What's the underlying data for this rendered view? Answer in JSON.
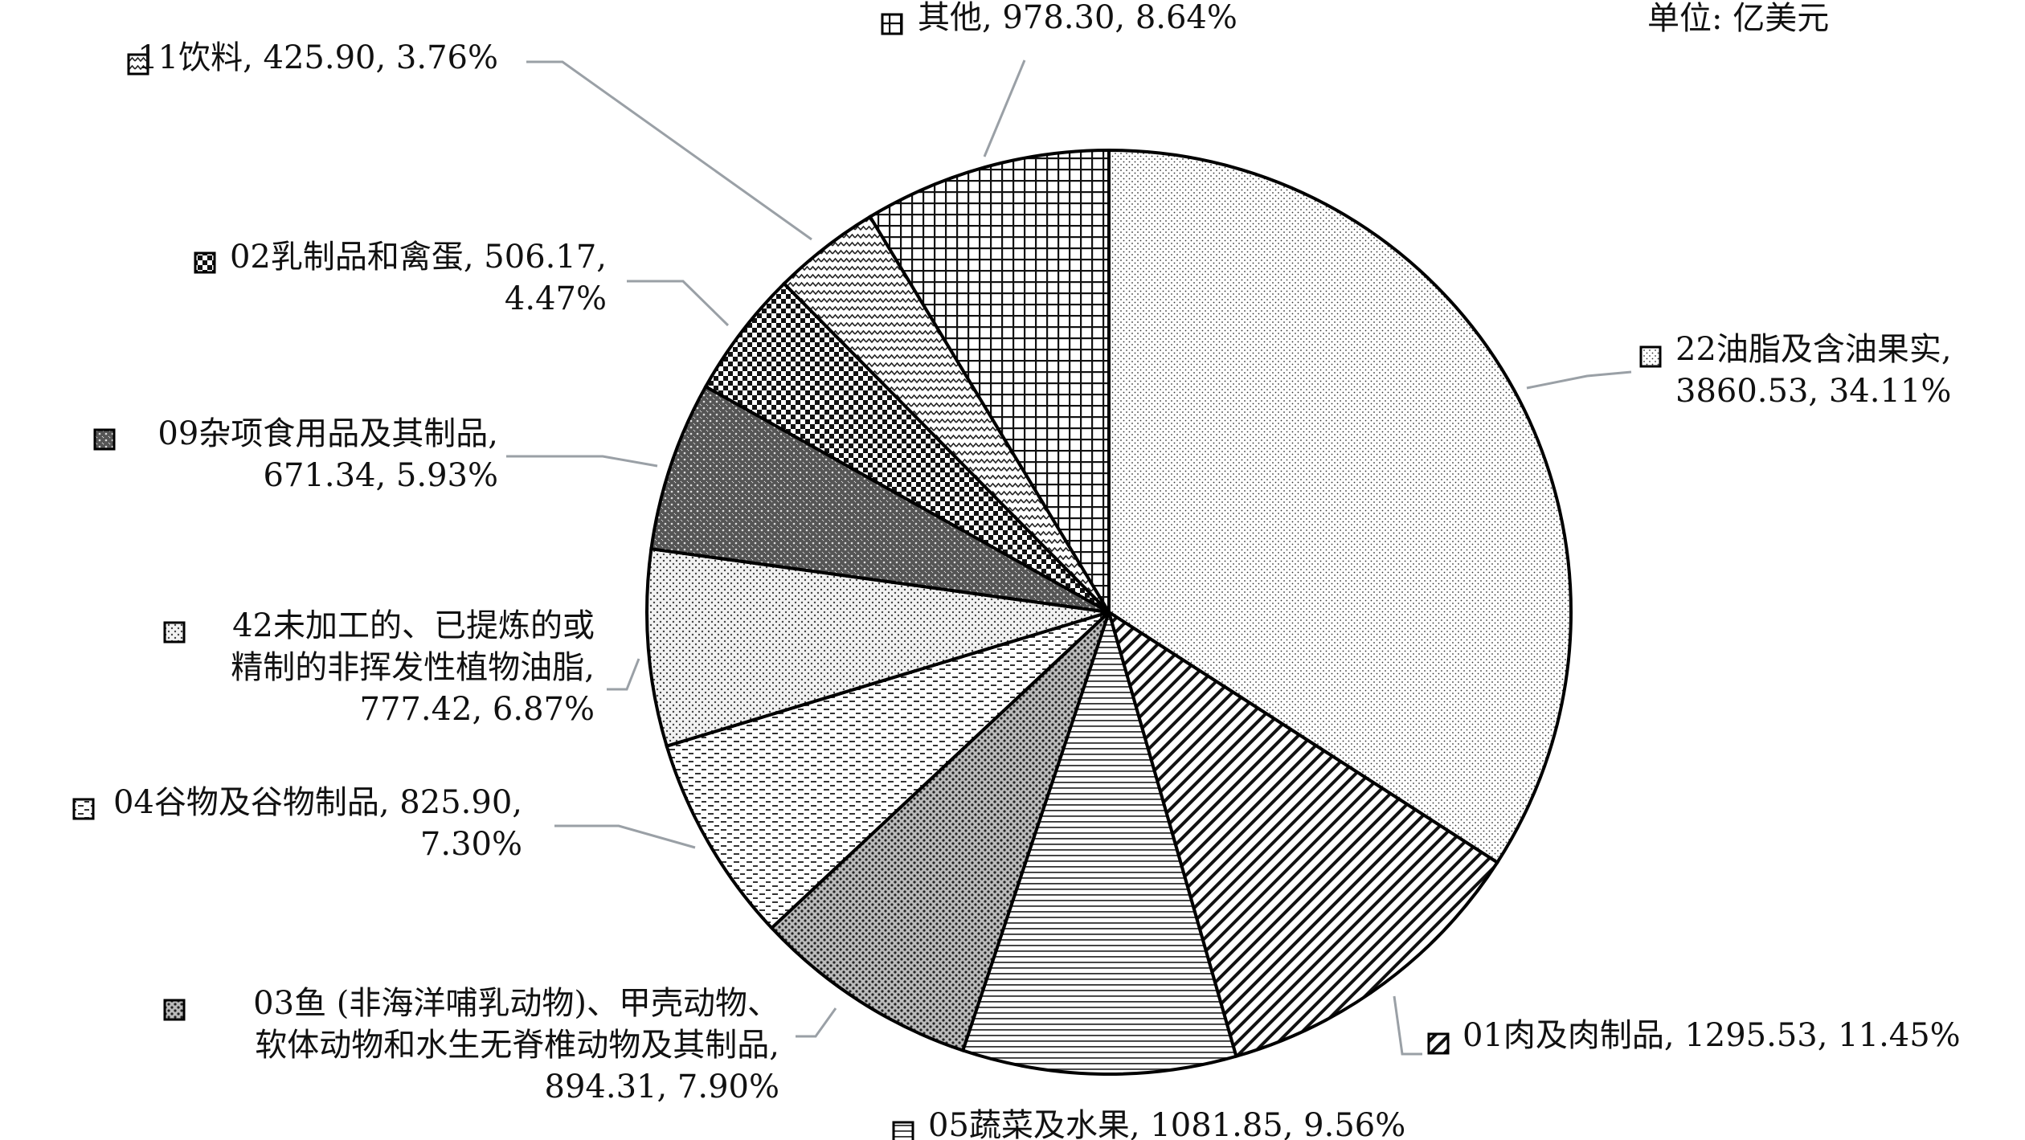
{
  "chart_data": {
    "type": "pie",
    "unit": "单位: 亿美元",
    "start": "12 o'clock, clockwise",
    "slices": [
      {
        "name": "22油脂及含油果实",
        "value": 3860.53,
        "pct": "34.11%",
        "pattern": "dots-fine",
        "label": [
          "22油脂及含油果实,",
          "3860.53, 34.11%"
        ]
      },
      {
        "name": "01肉及肉制品",
        "value": 1295.53,
        "pct": "11.45%",
        "pattern": "diag",
        "label": [
          "01肉及肉制品, 1295.53, 11.45%"
        ]
      },
      {
        "name": "05蔬菜及水果",
        "value": 1081.85,
        "pct": "9.56%",
        "pattern": "hlines",
        "label": [
          "05蔬菜及水果, 1081.85, 9.56%"
        ]
      },
      {
        "name": "03鱼 (非海洋哺乳动物)、甲壳动物、软体动物和水生无脊椎动物及其制品",
        "value": 894.31,
        "pct": "7.90%",
        "pattern": "dots-dark",
        "label": [
          "03鱼 (非海洋哺乳动物)、甲壳动物、",
          "软体动物和水生无脊椎动物及其制品,",
          "894.31, 7.90%"
        ]
      },
      {
        "name": "04谷物及谷物制品",
        "value": 825.9,
        "pct": "7.30%",
        "pattern": "dashes",
        "label": [
          "04谷物及谷物制品, 825.90,",
          "7.30%"
        ]
      },
      {
        "name": "42未加工的、已提炼的或精制的非挥发性植物油脂",
        "value": 777.42,
        "pct": "6.87%",
        "pattern": "dots-med",
        "label": [
          "42未加工的、已提炼的或",
          "精制的非挥发性植物油脂,",
          "777.42, 6.87%"
        ]
      },
      {
        "name": "09杂项食用品及其制品",
        "value": 671.34,
        "pct": "5.93%",
        "pattern": "grid-dark",
        "label": [
          "09杂项食用品及其制品,",
          "671.34, 5.93%"
        ]
      },
      {
        "name": "02乳制品和禽蛋",
        "value": 506.17,
        "pct": "4.47%",
        "pattern": "check",
        "label": [
          "02乳制品和禽蛋, 506.17,",
          "4.47%"
        ]
      },
      {
        "name": "11饮料",
        "value": 425.9,
        "pct": "3.76%",
        "pattern": "zigzag",
        "label": [
          "11饮料, 425.90, 3.76%"
        ]
      },
      {
        "name": "其他",
        "value": 978.3,
        "pct": "8.64%",
        "pattern": "grid",
        "label": [
          "其他, 978.30, 8.64%"
        ]
      }
    ]
  }
}
